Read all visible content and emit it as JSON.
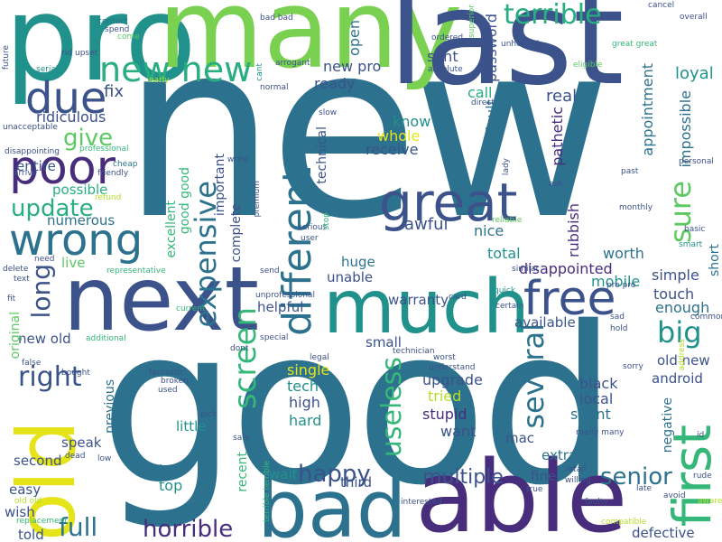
{
  "wordcloud": {
    "words": [
      {
        "text": "new",
        "color": "#2c728e"
      },
      {
        "text": "good",
        "color": "#2c728e"
      },
      {
        "text": "pro",
        "color": "#21918c"
      },
      {
        "text": "many",
        "color": "#7ad151"
      },
      {
        "text": "last",
        "color": "#3b528b"
      },
      {
        "text": "able",
        "color": "#472d7b"
      },
      {
        "text": "bad",
        "color": "#2c728e"
      },
      {
        "text": "next",
        "color": "#3b528b"
      },
      {
        "text": "much",
        "color": "#21918c"
      },
      {
        "text": "old",
        "color": "#e5e419"
      },
      {
        "text": "great",
        "color": "#3b528b"
      },
      {
        "text": "new new",
        "color": "#28ae80"
      },
      {
        "text": "due",
        "color": "#3b528b"
      },
      {
        "text": "poor",
        "color": "#472d7b"
      },
      {
        "text": "wrong",
        "color": "#2c728e"
      },
      {
        "text": "free",
        "color": "#3b528b"
      },
      {
        "text": "first",
        "color": "#35b779"
      },
      {
        "text": "terrible",
        "color": "#28ae80"
      },
      {
        "text": "different",
        "color": "#2c728e"
      },
      {
        "text": "give",
        "color": "#5ec962"
      },
      {
        "text": "update",
        "color": "#28ae80"
      },
      {
        "text": "right",
        "color": "#3b528b"
      },
      {
        "text": "long",
        "color": "#3b528b"
      },
      {
        "text": "horrible",
        "color": "#472d7b"
      },
      {
        "text": "screen",
        "color": "#35b779"
      },
      {
        "text": "expensive",
        "color": "#2c728e"
      },
      {
        "text": "full",
        "color": "#2c728e"
      },
      {
        "text": "senior",
        "color": "#2c728e"
      },
      {
        "text": "sure",
        "color": "#5ec962"
      },
      {
        "text": "big",
        "color": "#21918c"
      },
      {
        "text": "several",
        "color": "#2c728e"
      },
      {
        "text": "useless",
        "color": "#35b779"
      },
      {
        "text": "happy",
        "color": "#3b528b"
      },
      {
        "text": "multiple",
        "color": "#3b528b"
      },
      {
        "text": "loyal",
        "color": "#21918c"
      },
      {
        "text": "fix",
        "color": "#3b528b"
      },
      {
        "text": "ridiculous",
        "color": "#3b528b"
      },
      {
        "text": "password",
        "color": "#3b528b"
      },
      {
        "text": "new pro",
        "color": "#3b528b"
      },
      {
        "text": "sent",
        "color": "#3b528b"
      },
      {
        "text": "open",
        "color": "#2c728e"
      },
      {
        "text": "ready",
        "color": "#3b528b"
      },
      {
        "text": "call",
        "color": "#28ae80"
      },
      {
        "text": "real",
        "color": "#3b528b"
      },
      {
        "text": "know",
        "color": "#21918c"
      },
      {
        "text": "whole",
        "color": "#e5e419"
      },
      {
        "text": "receive",
        "color": "#3b528b"
      },
      {
        "text": "entire",
        "color": "#3b528b"
      },
      {
        "text": "possible",
        "color": "#28ae80"
      },
      {
        "text": "numerous",
        "color": "#2c728e"
      },
      {
        "text": "live",
        "color": "#5ec962"
      },
      {
        "text": "awful",
        "color": "#3b528b"
      },
      {
        "text": "nice",
        "color": "#2c728e"
      },
      {
        "text": "difficult",
        "color": "#2c728e"
      },
      {
        "text": "pathetic",
        "color": "#472d7b"
      },
      {
        "text": "appointment",
        "color": "#2c728e"
      },
      {
        "text": "impossible",
        "color": "#2c728e"
      },
      {
        "text": "rubbish",
        "color": "#472d7b"
      },
      {
        "text": "total",
        "color": "#21918c"
      },
      {
        "text": "disappointed",
        "color": "#472d7b"
      },
      {
        "text": "mobile",
        "color": "#21918c"
      },
      {
        "text": "worth",
        "color": "#2c728e"
      },
      {
        "text": "simple",
        "color": "#3b528b"
      },
      {
        "text": "touch",
        "color": "#3b528b"
      },
      {
        "text": "enough",
        "color": "#2c728e"
      },
      {
        "text": "short",
        "color": "#2c728e"
      },
      {
        "text": "huge",
        "color": "#2c728e"
      },
      {
        "text": "unable",
        "color": "#3b528b"
      },
      {
        "text": "warranty",
        "color": "#3b528b"
      },
      {
        "text": "helpful",
        "color": "#3b528b"
      },
      {
        "text": "available",
        "color": "#3b528b"
      },
      {
        "text": "old new",
        "color": "#3b528b"
      },
      {
        "text": "android",
        "color": "#3b528b"
      },
      {
        "text": "single",
        "color": "#e5e419"
      },
      {
        "text": "tech",
        "color": "#21918c"
      },
      {
        "text": "high",
        "color": "#3b528b"
      },
      {
        "text": "hard",
        "color": "#21918c"
      },
      {
        "text": "small",
        "color": "#3b528b"
      },
      {
        "text": "upgrade",
        "color": "#3b528b"
      },
      {
        "text": "tried",
        "color": "#b5de2b"
      },
      {
        "text": "stupid",
        "color": "#472d7b"
      },
      {
        "text": "want",
        "color": "#3b528b"
      },
      {
        "text": "black",
        "color": "#3b528b"
      },
      {
        "text": "local",
        "color": "#3b528b"
      },
      {
        "text": "spent",
        "color": "#2c728e"
      },
      {
        "text": "mac",
        "color": "#3b528b"
      },
      {
        "text": "extra",
        "color": "#2c728e"
      },
      {
        "text": "fine",
        "color": "#3b528b"
      },
      {
        "text": "defective",
        "color": "#3b528b"
      },
      {
        "text": "negative",
        "color": "#2c728e"
      },
      {
        "text": "third",
        "color": "#3b528b"
      },
      {
        "text": "little",
        "color": "#21918c"
      },
      {
        "text": "speak",
        "color": "#3b528b"
      },
      {
        "text": "previous",
        "color": "#2c728e"
      },
      {
        "text": "second",
        "color": "#3b528b"
      },
      {
        "text": "easy",
        "color": "#3b528b"
      },
      {
        "text": "clear",
        "color": "#2c728e"
      },
      {
        "text": "top",
        "color": "#21918c"
      },
      {
        "text": "wait",
        "color": "#21918c"
      },
      {
        "text": "recent",
        "color": "#35b779"
      },
      {
        "text": "wish",
        "color": "#3b528b"
      },
      {
        "text": "told",
        "color": "#3b528b"
      },
      {
        "text": "new old",
        "color": "#3b528b"
      },
      {
        "text": "excellent",
        "color": "#35b779"
      },
      {
        "text": "good good",
        "color": "#35b779"
      },
      {
        "text": "important",
        "color": "#3b528b"
      },
      {
        "text": "complete",
        "color": "#3b528b"
      },
      {
        "text": "technical",
        "color": "#3b528b"
      },
      {
        "text": "original",
        "color": "#5ec962"
      },
      {
        "text": "contact",
        "color": "#2c728e"
      },
      {
        "text": "spend",
        "color": "#3b528b"
      },
      {
        "text": "come",
        "color": "#5ec962"
      },
      {
        "text": "rid",
        "color": "#3b528b"
      },
      {
        "text": "upset",
        "color": "#3b528b"
      },
      {
        "text": "future",
        "color": "#3b528b"
      },
      {
        "text": "serial",
        "color": "#21918c"
      },
      {
        "text": "early",
        "color": "#b5de2b"
      },
      {
        "text": "unacceptable",
        "color": "#3b528b"
      },
      {
        "text": "disappointing",
        "color": "#3b528b"
      },
      {
        "text": "professional",
        "color": "#35b779"
      },
      {
        "text": "friendly",
        "color": "#3b528b"
      },
      {
        "text": "cheap",
        "color": "#2c728e"
      },
      {
        "text": "arrive",
        "color": "#3b528b"
      },
      {
        "text": "refund",
        "color": "#b5de2b"
      },
      {
        "text": "need",
        "color": "#3b528b"
      },
      {
        "text": "delete",
        "color": "#3b528b"
      },
      {
        "text": "text",
        "color": "#3b528b"
      },
      {
        "text": "fit",
        "color": "#3b528b"
      },
      {
        "text": "representative",
        "color": "#35b779"
      },
      {
        "text": "additional",
        "color": "#35b779"
      },
      {
        "text": "false",
        "color": "#3b528b"
      },
      {
        "text": "old old",
        "color": "#b5de2b"
      },
      {
        "text": "replacement",
        "color": "#35b779"
      },
      {
        "text": "bought",
        "color": "#3b528b"
      },
      {
        "text": "dead",
        "color": "#3b528b"
      },
      {
        "text": "low",
        "color": "#3b528b"
      },
      {
        "text": "fantastic",
        "color": "#3b528b"
      },
      {
        "text": "broken",
        "color": "#3b528b"
      },
      {
        "text": "used",
        "color": "#3b528b"
      },
      {
        "text": "pick",
        "color": "#3b528b"
      },
      {
        "text": "safe",
        "color": "#3b528b"
      },
      {
        "text": "terrible terrible",
        "color": "#35b779"
      },
      {
        "text": "bad bad",
        "color": "#3b528b"
      },
      {
        "text": "superior",
        "color": "#5ec962"
      },
      {
        "text": "ordered",
        "color": "#3b528b"
      },
      {
        "text": "absolute",
        "color": "#3b528b"
      },
      {
        "text": "arrogant",
        "color": "#3b528b"
      },
      {
        "text": "cant",
        "color": "#21918c"
      },
      {
        "text": "normal",
        "color": "#3b528b"
      },
      {
        "text": "direct",
        "color": "#3b528b"
      },
      {
        "text": "slow",
        "color": "#3b528b"
      },
      {
        "text": "lady",
        "color": "#3b528b"
      },
      {
        "text": "write",
        "color": "#3b528b"
      },
      {
        "text": "premium",
        "color": "#3b528b"
      },
      {
        "text": "serious",
        "color": "#3b528b"
      },
      {
        "text": "user",
        "color": "#3b528b"
      },
      {
        "text": "stop",
        "color": "#35b779"
      },
      {
        "text": "send",
        "color": "#3b528b"
      },
      {
        "text": "unprofessional",
        "color": "#3b528b"
      },
      {
        "text": "current",
        "color": "#35b779"
      },
      {
        "text": "dont",
        "color": "#3b528b"
      },
      {
        "text": "special",
        "color": "#3b528b"
      },
      {
        "text": "legal",
        "color": "#3b528b"
      },
      {
        "text": "technician",
        "color": "#3b528b"
      },
      {
        "text": "worst",
        "color": "#3b528b"
      },
      {
        "text": "understand",
        "color": "#3b528b"
      },
      {
        "text": "interested",
        "color": "#3b528b"
      },
      {
        "text": "card",
        "color": "#3b528b"
      },
      {
        "text": "certain",
        "color": "#3b528b"
      },
      {
        "text": "quick",
        "color": "#21918c"
      },
      {
        "text": "similar",
        "color": "#3b528b"
      },
      {
        "text": "reliable",
        "color": "#5ec962"
      },
      {
        "text": "cancel",
        "color": "#3b528b"
      },
      {
        "text": "overall",
        "color": "#3b528b"
      },
      {
        "text": "unhelpful",
        "color": "#3b528b"
      },
      {
        "text": "great great",
        "color": "#35b779"
      },
      {
        "text": "eligible",
        "color": "#5ec962"
      },
      {
        "text": "personal",
        "color": "#3b528b"
      },
      {
        "text": "ask",
        "color": "#3b528b"
      },
      {
        "text": "past",
        "color": "#3b528b"
      },
      {
        "text": "monthly",
        "color": "#3b528b"
      },
      {
        "text": "basic",
        "color": "#3b528b"
      },
      {
        "text": "smart",
        "color": "#21918c"
      },
      {
        "text": "common",
        "color": "#3b528b"
      },
      {
        "text": "sad",
        "color": "#3b528b"
      },
      {
        "text": "hold",
        "color": "#3b528b"
      },
      {
        "text": "address",
        "color": "#b5de2b"
      },
      {
        "text": "sorry",
        "color": "#3b528b"
      },
      {
        "text": "many many",
        "color": "#3b528b"
      },
      {
        "text": "id",
        "color": "#3b528b"
      },
      {
        "text": "retail",
        "color": "#3b528b"
      },
      {
        "text": "willing",
        "color": "#3b528b"
      },
      {
        "text": "rude",
        "color": "#3b528b"
      },
      {
        "text": "late",
        "color": "#3b528b"
      },
      {
        "text": "true",
        "color": "#3b528b"
      },
      {
        "text": "faulty",
        "color": "#3b528b"
      },
      {
        "text": "avoid",
        "color": "#3b528b"
      },
      {
        "text": "aware",
        "color": "#b5de2b"
      },
      {
        "text": "compatible",
        "color": "#b5de2b"
      },
      {
        "text": "pro pro",
        "color": "#3b528b"
      }
    ]
  }
}
